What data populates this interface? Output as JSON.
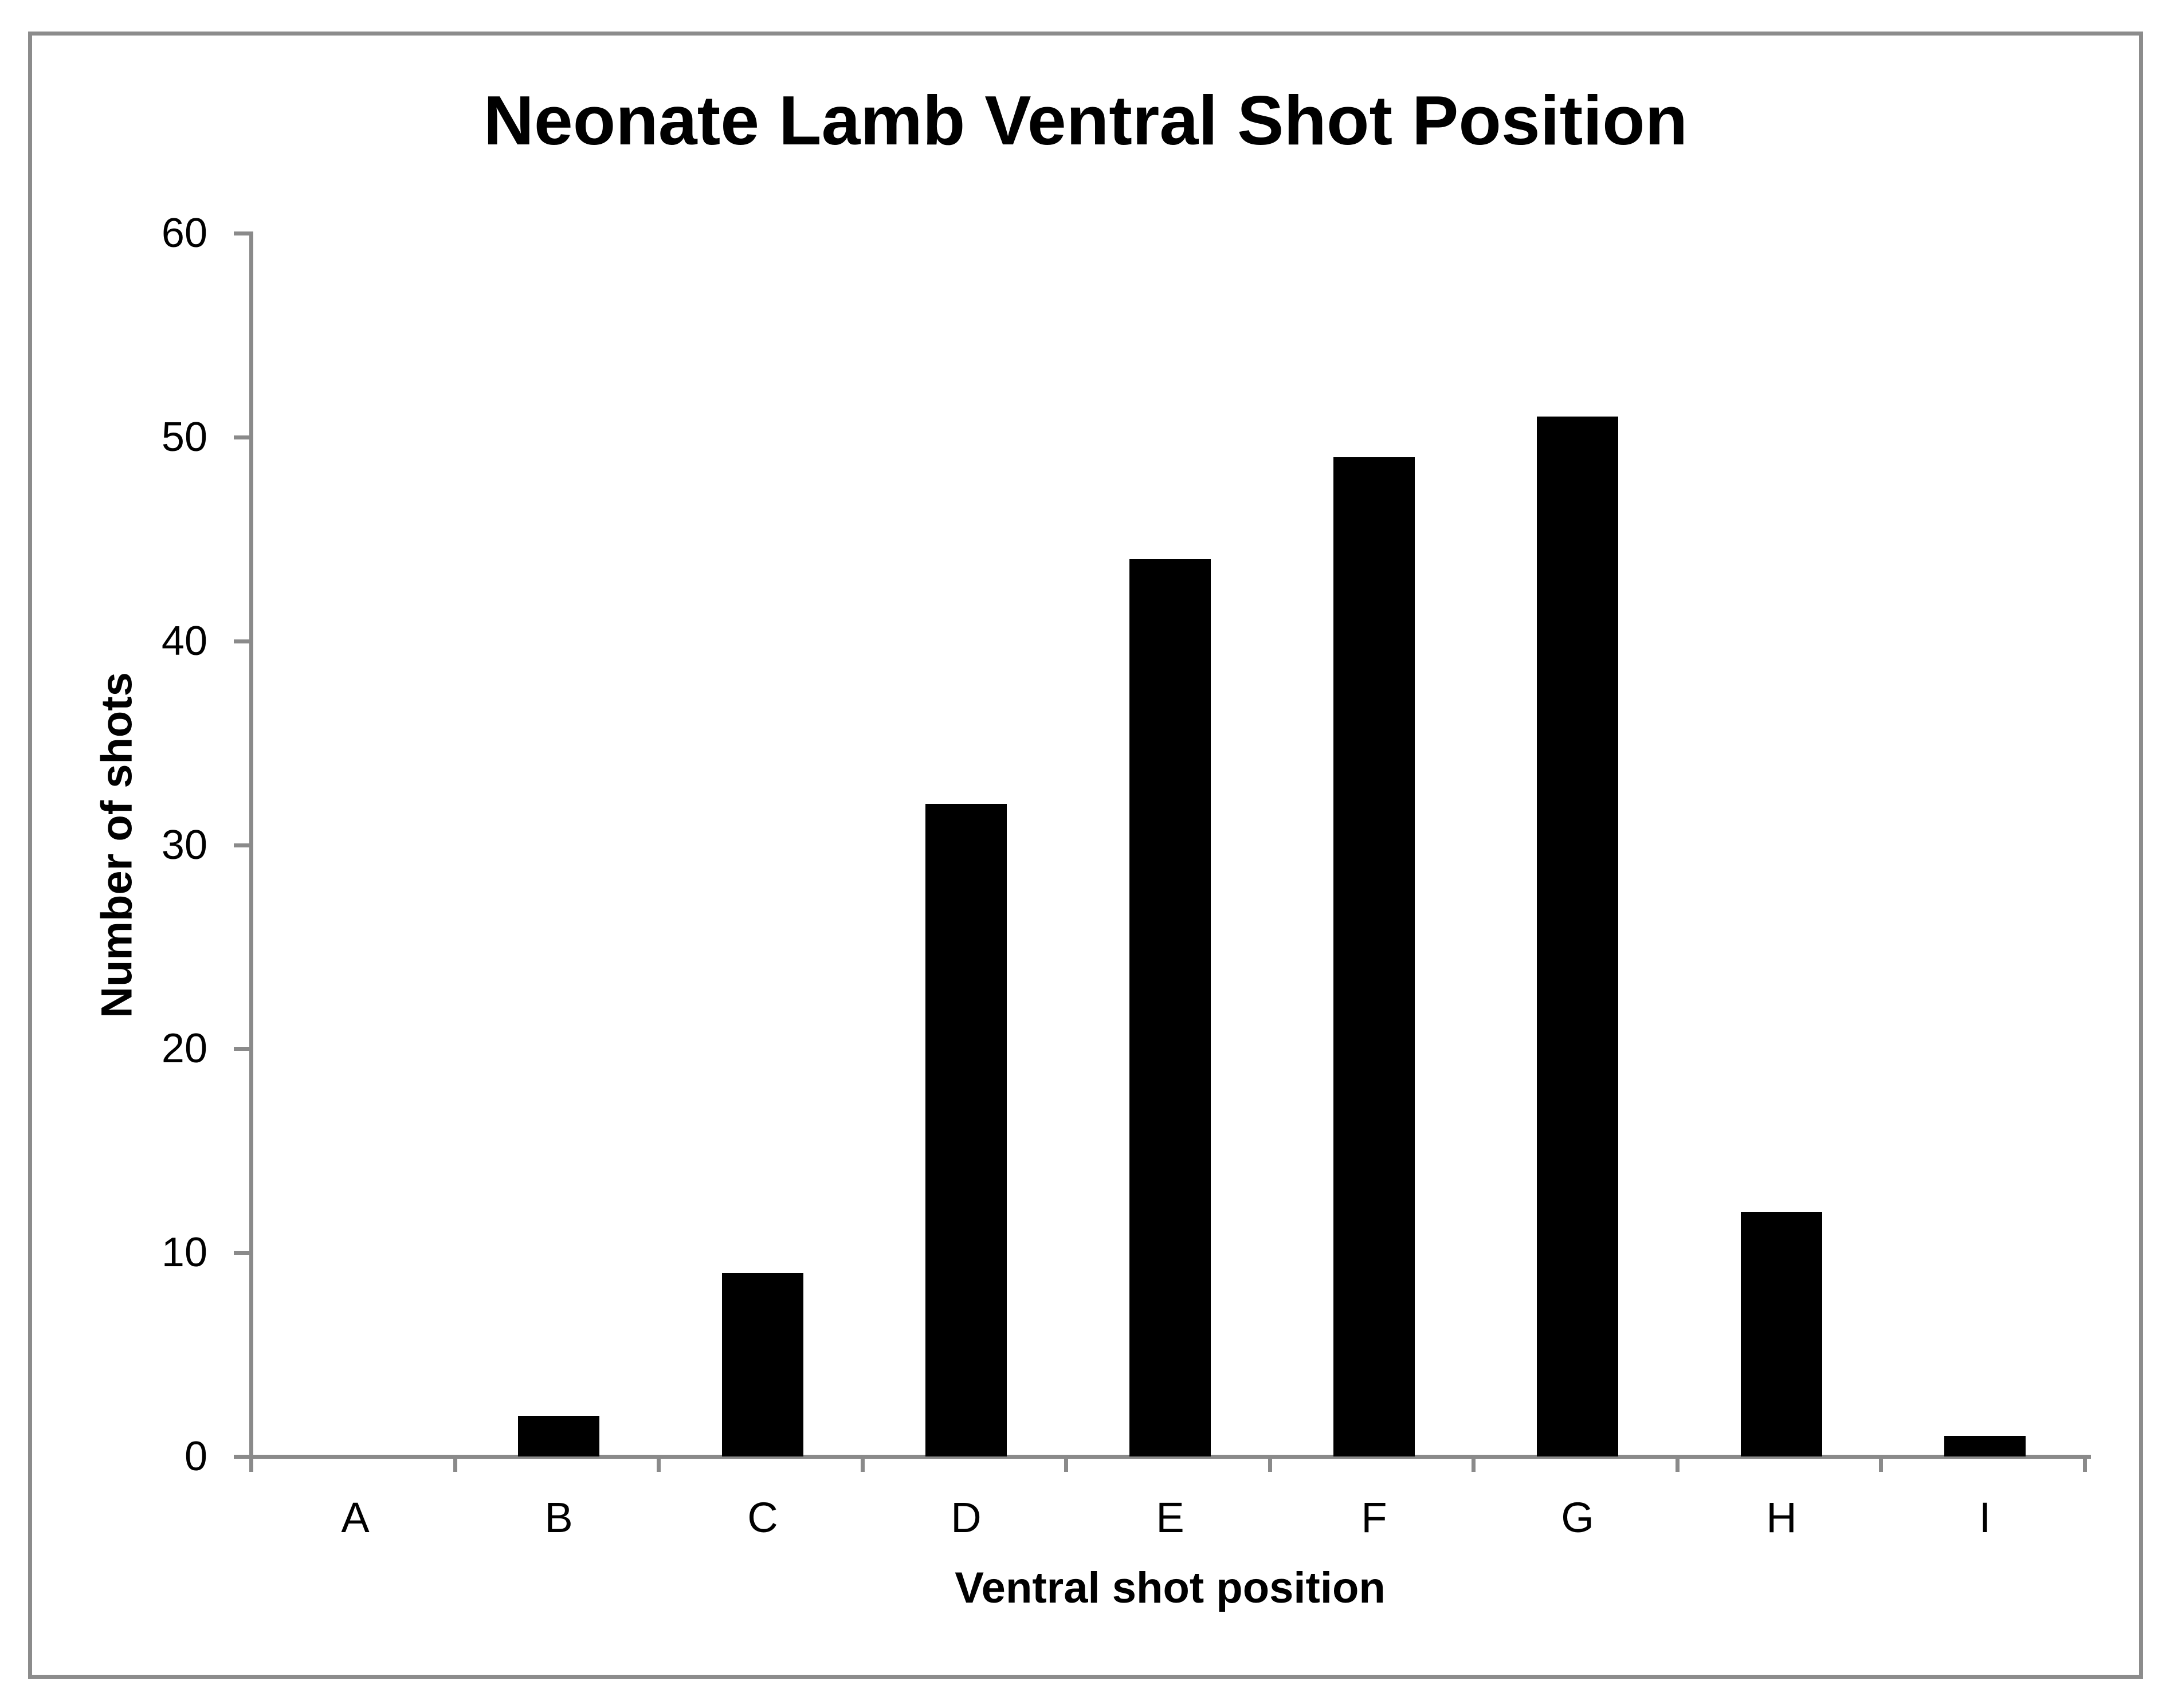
{
  "chart_data": {
    "type": "bar",
    "title": "Neonate Lamb Ventral Shot Position",
    "xlabel": "Ventral shot position",
    "ylabel": "Number of shots",
    "categories": [
      "A",
      "B",
      "C",
      "D",
      "E",
      "F",
      "G",
      "H",
      "I"
    ],
    "values": [
      0,
      2,
      9,
      32,
      44,
      49,
      51,
      12,
      1
    ],
    "ylim": [
      0,
      60
    ],
    "ytick_interval": 10,
    "ytick_labels": [
      "0",
      "10",
      "20",
      "30",
      "40",
      "50",
      "60"
    ],
    "grid": false,
    "legend": false,
    "bar_color": "#000000",
    "axis_color": "#8A8A8A",
    "frame_border_color": "#8C8C8C",
    "background_color": "#FFFFFF",
    "text_color": "#000000"
  }
}
